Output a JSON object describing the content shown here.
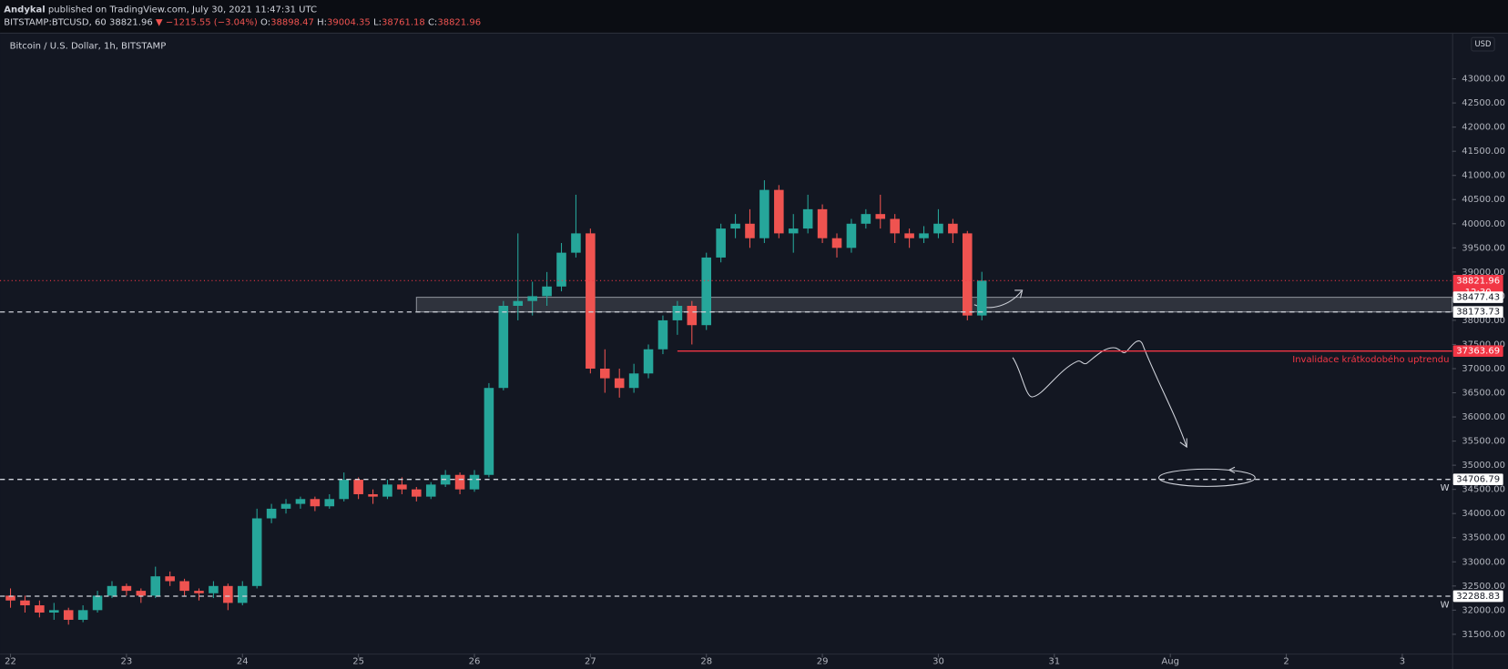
{
  "header": {
    "author": "Andykal",
    "published": " published on TradingView.com, July 30, 2021 11:47:31 UTC",
    "symbol": "BITSTAMP:BTCUSD, 60",
    "price": "38821.96",
    "change": "▼ −1215.55 (−3.04%)",
    "ohlc": [
      {
        "label": "O:",
        "value": "38898.47"
      },
      {
        "label": "H:",
        "value": "39004.35"
      },
      {
        "label": "L:",
        "value": "38761.18"
      },
      {
        "label": "C:",
        "value": "38821.96"
      }
    ]
  },
  "chart_data": {
    "type": "candlestick",
    "legend": "Bitcoin / U.S. Dollar, 1h, BITSTAMP",
    "currency": "USD",
    "up_color": "#26a69a",
    "down_color": "#ef5350",
    "grid": false,
    "xlim": [
      21.91,
      34.43
    ],
    "ylim": [
      31100,
      43915
    ],
    "xticks": [
      22,
      23,
      24,
      25,
      26,
      27,
      28,
      29,
      30,
      31,
      {
        "value": 32,
        "label": "Aug"
      },
      {
        "value": 33,
        "label": "2"
      },
      {
        "value": 34,
        "label": "3"
      }
    ],
    "yticks": [
      {
        "value": 31500,
        "label": "31500.00"
      },
      {
        "value": 32000,
        "label": "32000.00"
      },
      {
        "value": 32500,
        "label": "32500.00"
      },
      {
        "value": 33000,
        "label": "33000.00"
      },
      {
        "value": 33500,
        "label": "33500.00"
      },
      {
        "value": 34000,
        "label": "34000.00"
      },
      {
        "value": 34500,
        "label": "34500.00"
      },
      {
        "value": 35000,
        "label": "35000.00"
      },
      {
        "value": 35500,
        "label": "35500.00"
      },
      {
        "value": 36000,
        "label": "36000.00"
      },
      {
        "value": 36500,
        "label": "36500.00"
      },
      {
        "value": 37000,
        "label": "37000.00"
      },
      {
        "value": 37500,
        "label": "37500.00"
      },
      {
        "value": 38000,
        "label": "38000.00"
      },
      {
        "value": 38500,
        "label": "38500.00"
      },
      {
        "value": 39000,
        "label": "39000.00"
      },
      {
        "value": 39500,
        "label": "39500.00"
      },
      {
        "value": 40000,
        "label": "40000.00"
      },
      {
        "value": 40500,
        "label": "40500.00"
      },
      {
        "value": 41000,
        "label": "41000.00"
      },
      {
        "value": 41500,
        "label": "41500.00"
      },
      {
        "value": 42000,
        "label": "42000.00"
      },
      {
        "value": 42500,
        "label": "42500.00"
      },
      {
        "value": 43000,
        "label": "43000.00"
      }
    ],
    "x": [
      22,
      22.125,
      22.25,
      22.375,
      22.5,
      22.625,
      22.75,
      22.875,
      23,
      23.125,
      23.25,
      23.375,
      23.5,
      23.625,
      23.75,
      23.875,
      24,
      24.125,
      24.25,
      24.375,
      24.5,
      24.625,
      24.75,
      24.875,
      25,
      25.125,
      25.25,
      25.375,
      25.5,
      25.625,
      25.75,
      25.875,
      26,
      26.125,
      26.25,
      26.375,
      26.5,
      26.625,
      26.75,
      26.875,
      27,
      27.125,
      27.25,
      27.375,
      27.5,
      27.625,
      27.75,
      27.875,
      28,
      28.125,
      28.25,
      28.375,
      28.5,
      28.625,
      28.75,
      28.875,
      29,
      29.125,
      29.25,
      29.375,
      29.5,
      29.625,
      29.75,
      29.875,
      30,
      30.125,
      30.25,
      30.375
    ],
    "open": [
      32300,
      32200,
      32100,
      31950,
      32000,
      31800,
      32000,
      32300,
      32500,
      32400,
      32300,
      32700,
      32600,
      32400,
      32350,
      32500,
      32150,
      32500,
      33900,
      34100,
      34200,
      34300,
      34150,
      34300,
      34700,
      34400,
      34350,
      34600,
      34500,
      34350,
      34600,
      34800,
      34500,
      34800,
      36600,
      38300,
      38400,
      38500,
      38700,
      39400,
      39800,
      37000,
      36800,
      36600,
      36900,
      37400,
      38000,
      38300,
      37900,
      39300,
      39900,
      40000,
      39700,
      40700,
      39800,
      39900,
      40300,
      39700,
      39500,
      40000,
      40200,
      40100,
      39800,
      39700,
      39800,
      40000,
      39800,
      38100
    ],
    "high": [
      32450,
      32300,
      32200,
      32150,
      32050,
      32100,
      32400,
      32600,
      32550,
      32450,
      32900,
      32800,
      32650,
      32450,
      32600,
      32550,
      32600,
      34100,
      34200,
      34300,
      34350,
      34350,
      34400,
      34850,
      34750,
      34500,
      34700,
      34750,
      34550,
      34650,
      34900,
      34850,
      34900,
      36700,
      38400,
      39800,
      38800,
      39000,
      39600,
      40600,
      39900,
      37400,
      37000,
      37100,
      37500,
      38100,
      38400,
      38400,
      39400,
      40000,
      40200,
      40300,
      40900,
      40800,
      40200,
      40600,
      40400,
      39800,
      40100,
      40300,
      40600,
      40200,
      39900,
      39950,
      40300,
      40100,
      39850,
      39004.35
    ],
    "low": [
      32050,
      31950,
      31850,
      31800,
      31700,
      31750,
      31950,
      32250,
      32300,
      32150,
      32250,
      32500,
      32300,
      32200,
      32250,
      32000,
      32100,
      32450,
      33800,
      34000,
      34100,
      34050,
      34100,
      34250,
      34300,
      34200,
      34300,
      34400,
      34250,
      34300,
      34550,
      34400,
      34450,
      34750,
      36550,
      38000,
      38100,
      38300,
      38600,
      39300,
      36900,
      36500,
      36400,
      36500,
      36800,
      37300,
      37700,
      37500,
      37800,
      39200,
      39700,
      39500,
      39600,
      39700,
      39400,
      39800,
      39600,
      39300,
      39400,
      39900,
      39900,
      39600,
      39500,
      39600,
      39700,
      39600,
      38000,
      38000
    ],
    "close": [
      32200,
      32100,
      31950,
      32000,
      31800,
      32000,
      32300,
      32500,
      32400,
      32300,
      32700,
      32600,
      32400,
      32350,
      32500,
      32150,
      32500,
      33900,
      34100,
      34200,
      34300,
      34150,
      34300,
      34700,
      34400,
      34350,
      34600,
      34500,
      34350,
      34600,
      34800,
      34500,
      34800,
      36600,
      38300,
      38400,
      38500,
      38700,
      39400,
      39800,
      37000,
      36800,
      36600,
      36900,
      37400,
      38000,
      38300,
      37900,
      39300,
      39900,
      40000,
      39700,
      40700,
      39800,
      39900,
      40300,
      39700,
      39500,
      40000,
      40200,
      40100,
      39800,
      39700,
      39800,
      40000,
      39800,
      38100,
      38821.96
    ],
    "zone_start": 25.5,
    "levels": [
      {
        "value": 38821.96,
        "line": "dotted",
        "color": "#f23645",
        "sublabel": "12:30"
      },
      {
        "value": 38477.43,
        "line": "none",
        "color": "#ffffff",
        "zone": true
      },
      {
        "value": 38173.73,
        "line": "dashed",
        "color": "#ffffff",
        "zone": true
      },
      {
        "value": 37363.69,
        "line": "solid",
        "color": "#f23645",
        "x_start": 27.75,
        "note": "Invalidace krátkodobého uptrendu"
      },
      {
        "value": 34706.79,
        "line": "dashed",
        "color": "#ffffff",
        "note": "W"
      },
      {
        "value": 32288.83,
        "line": "dashed",
        "color": "#ffffff",
        "note": "W"
      }
    ]
  }
}
